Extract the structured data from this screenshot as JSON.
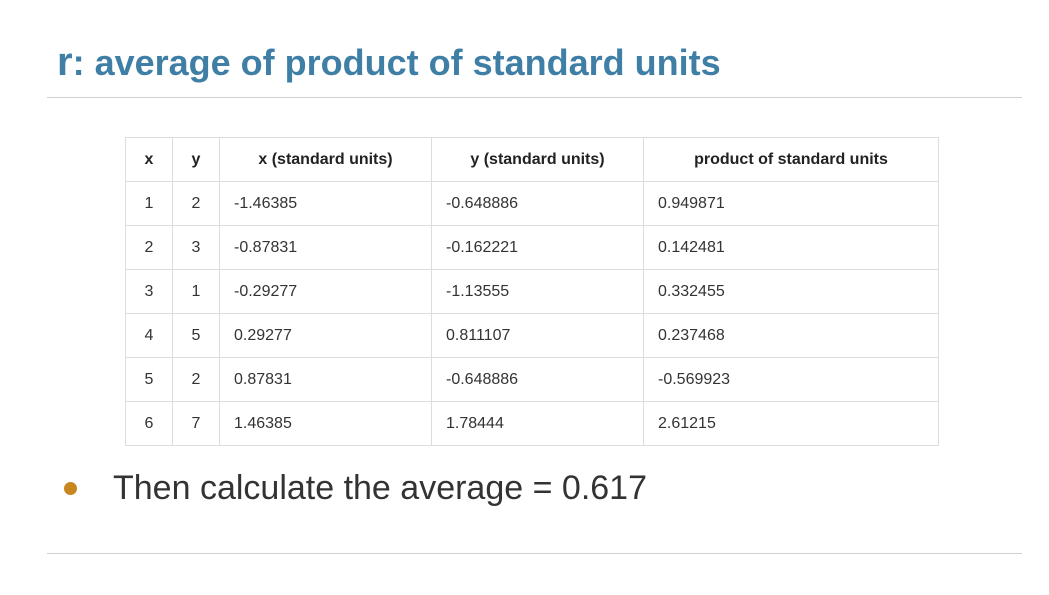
{
  "slide": {
    "title_var": "r",
    "title_rest": ": average of product of standard units"
  },
  "table": {
    "headers": [
      "x",
      "y",
      "x (standard units)",
      "y (standard units)",
      "product of standard units"
    ],
    "rows": [
      [
        "1",
        "2",
        "-1.46385",
        "-0.648886",
        "0.949871"
      ],
      [
        "2",
        "3",
        "-0.87831",
        "-0.162221",
        "0.142481"
      ],
      [
        "3",
        "1",
        "-0.29277",
        "-1.13555",
        "0.332455"
      ],
      [
        "4",
        "5",
        "0.29277",
        "0.811107",
        "0.237468"
      ],
      [
        "5",
        "2",
        "0.87831",
        "-0.648886",
        "-0.569923"
      ],
      [
        "6",
        "7",
        "1.46385",
        "1.78444",
        "2.61215"
      ]
    ]
  },
  "bullet": {
    "text": "Then calculate the average = 0.617"
  },
  "colors": {
    "title": "#3f7fa6",
    "bullet": "#c8861f",
    "rule": "#d0d0d0",
    "table_border": "#dddddd"
  }
}
